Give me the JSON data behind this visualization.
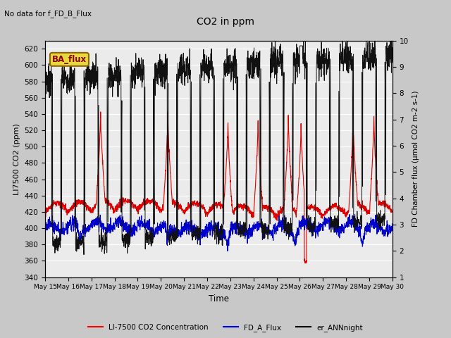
{
  "title": "CO2 in ppm",
  "top_left_text": "No data for f_FD_B_Flux",
  "box_label": "BA_flux",
  "xlabel": "Time",
  "ylabel_left": "LI7500 CO2 (ppm)",
  "ylabel_right": "FD Chamber flux (μmol CO2 m-2 s-1)",
  "ylim_left": [
    340,
    630
  ],
  "ylim_right": [
    1.0,
    10.0
  ],
  "yticks_left": [
    340,
    360,
    380,
    400,
    420,
    440,
    460,
    480,
    500,
    520,
    540,
    560,
    580,
    600,
    620
  ],
  "yticks_right": [
    1.0,
    2.0,
    3.0,
    4.0,
    5.0,
    6.0,
    7.0,
    8.0,
    9.0,
    10.0
  ],
  "xticklabels": [
    "May 15",
    "May 16",
    "May 17",
    "May 18",
    "May 19",
    "May 20",
    "May 21",
    "May 22",
    "May 23",
    "May 24",
    "May 25",
    "May 26",
    "May 27",
    "May 28",
    "May 29",
    "May 30"
  ],
  "legend_labels": [
    "LI-7500 CO2 Concentration",
    "FD_A_Flux",
    "er_ANNnight"
  ],
  "plot_bg_color": "#ebebeb",
  "fig_bg_color": "#c8c8c8",
  "red_line_color": "#dd0000",
  "blue_line_color": "#0000cc",
  "black_line_color": "#111111",
  "grid_color": "#ffffff",
  "box_face": "#e8d840",
  "box_edge": "#8B6500",
  "box_text_color": "#8B0000"
}
